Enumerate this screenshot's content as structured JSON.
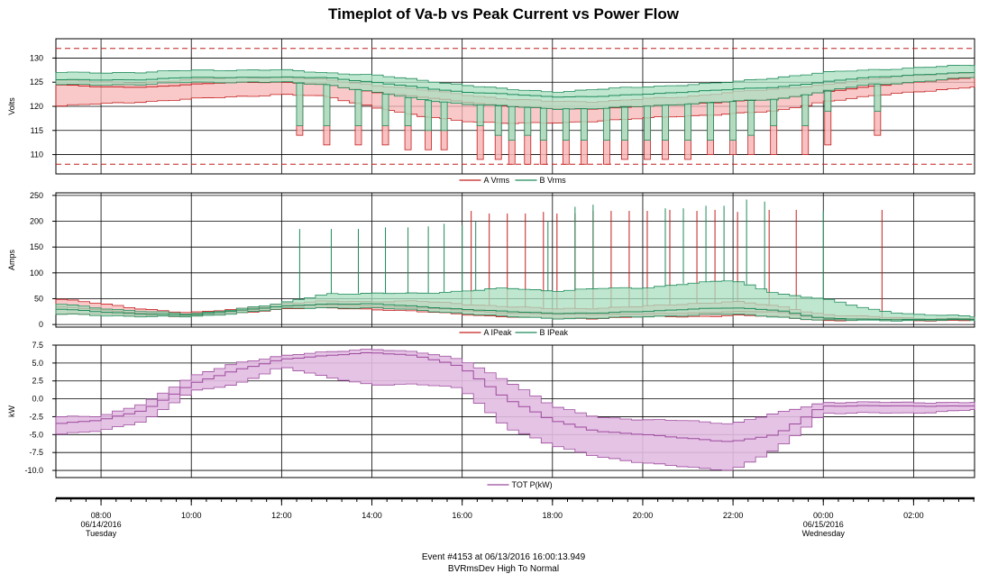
{
  "title": "Timeplot of Va-b vs Peak Current vs Power Flow",
  "footer": {
    "event": "Event #4153 at 06/13/2016 16:00:13.949",
    "description": "BVRmsDev High To Normal"
  },
  "colors": {
    "a_line": "#c41e1e",
    "a_fill": "#f7b7b7",
    "b_line": "#1e8a5a",
    "b_fill": "#a9dfc0",
    "overlap_fill": "#b4c7bc",
    "p_line": "#9c4a9c",
    "p_fill": "#e2bce2",
    "limit": "#c41e1e"
  },
  "time_axis": {
    "start_hour": 7.0,
    "end_hour": 27.35,
    "ticks": [
      {
        "hour": 8,
        "lines": [
          "08:00",
          "06/14/2016",
          "Tuesday"
        ]
      },
      {
        "hour": 10,
        "lines": [
          "10:00"
        ]
      },
      {
        "hour": 12,
        "lines": [
          "12:00"
        ]
      },
      {
        "hour": 14,
        "lines": [
          "14:00"
        ]
      },
      {
        "hour": 16,
        "lines": [
          "16:00"
        ]
      },
      {
        "hour": 18,
        "lines": [
          "18:00"
        ]
      },
      {
        "hour": 20,
        "lines": [
          "20:00"
        ]
      },
      {
        "hour": 22,
        "lines": [
          "22:00"
        ]
      },
      {
        "hour": 24,
        "lines": [
          "00:00",
          "06/15/2016",
          "Wednesday"
        ]
      },
      {
        "hour": 26,
        "lines": [
          "02:00"
        ]
      }
    ]
  },
  "chart_data": [
    {
      "type": "area",
      "ylabel": "Volts",
      "ylim": [
        106,
        134
      ],
      "yticks": [
        110,
        115,
        120,
        125,
        130
      ],
      "limits": [
        132,
        108
      ],
      "legend": [
        "A Vrms",
        "B Vrms"
      ],
      "series": [
        {
          "name": "A Vrms",
          "x": [
            7,
            8,
            9,
            10,
            11,
            12,
            13,
            14,
            15,
            16,
            17,
            18,
            19,
            20,
            21,
            22,
            23,
            24,
            25,
            26,
            27.35
          ],
          "avg": [
            124.5,
            124,
            124,
            124.5,
            125,
            125,
            124.5,
            123,
            122,
            121,
            120,
            119.5,
            119.5,
            120,
            120.5,
            121,
            121.5,
            123,
            124,
            125,
            126
          ],
          "min": [
            120,
            120.5,
            121,
            121.5,
            122,
            122.5,
            122,
            120,
            118,
            117,
            116.5,
            116.5,
            117,
            117.5,
            118,
            118.5,
            119,
            121,
            122,
            123,
            124
          ],
          "max": [
            125.5,
            125,
            125,
            125.5,
            126,
            126,
            125.5,
            124.5,
            123.5,
            122.5,
            121.5,
            121,
            121,
            121.5,
            122,
            123,
            123.5,
            124.5,
            125.5,
            126.5,
            127
          ],
          "dips": [
            {
              "x": 12.4,
              "min": 114
            },
            {
              "x": 13.0,
              "min": 112
            },
            {
              "x": 13.7,
              "min": 112
            },
            {
              "x": 14.3,
              "min": 112
            },
            {
              "x": 14.8,
              "min": 111
            },
            {
              "x": 15.25,
              "min": 111
            },
            {
              "x": 15.6,
              "min": 111
            },
            {
              "x": 16.4,
              "min": 109
            },
            {
              "x": 16.8,
              "min": 109
            },
            {
              "x": 17.1,
              "min": 108
            },
            {
              "x": 17.45,
              "min": 108
            },
            {
              "x": 17.8,
              "min": 108
            },
            {
              "x": 18.3,
              "min": 108
            },
            {
              "x": 18.7,
              "min": 108
            },
            {
              "x": 19.2,
              "min": 108
            },
            {
              "x": 19.6,
              "min": 109
            },
            {
              "x": 20.1,
              "min": 109
            },
            {
              "x": 20.5,
              "min": 109
            },
            {
              "x": 21.0,
              "min": 109
            },
            {
              "x": 21.5,
              "min": 110
            },
            {
              "x": 22.0,
              "min": 110
            },
            {
              "x": 22.4,
              "min": 110
            },
            {
              "x": 22.9,
              "min": 110
            },
            {
              "x": 23.6,
              "min": 110
            },
            {
              "x": 24.1,
              "min": 112
            },
            {
              "x": 25.2,
              "min": 114
            }
          ]
        },
        {
          "name": "B Vrms",
          "x": [
            7,
            8,
            9,
            10,
            11,
            12,
            13,
            14,
            15,
            16,
            17,
            18,
            19,
            20,
            21,
            22,
            23,
            24,
            25,
            26,
            27.35
          ],
          "avg": [
            125.5,
            125.5,
            125.5,
            126,
            126,
            126,
            126,
            125,
            124,
            123,
            122.5,
            122,
            122,
            122.5,
            123,
            123.5,
            124,
            125,
            126,
            126.5,
            127
          ],
          "min": [
            124.5,
            124.5,
            124.5,
            125,
            125,
            125,
            124.5,
            123,
            121.5,
            120.5,
            120,
            119.5,
            119.5,
            120,
            120.5,
            121,
            121.5,
            123,
            124.5,
            125,
            126
          ],
          "max": [
            127,
            127,
            127,
            127.5,
            127.5,
            127.5,
            127,
            126.5,
            125.5,
            124.5,
            123.5,
            123,
            123.5,
            124,
            124.5,
            125,
            126,
            127,
            127.5,
            128,
            128.5
          ],
          "dips": [
            {
              "x": 12.4,
              "min": 116
            },
            {
              "x": 13.0,
              "min": 116
            },
            {
              "x": 13.7,
              "min": 116
            },
            {
              "x": 14.3,
              "min": 116
            },
            {
              "x": 14.8,
              "min": 116
            },
            {
              "x": 15.25,
              "min": 115
            },
            {
              "x": 15.6,
              "min": 115
            },
            {
              "x": 16.4,
              "min": 116
            },
            {
              "x": 16.8,
              "min": 114
            },
            {
              "x": 17.1,
              "min": 113
            },
            {
              "x": 17.45,
              "min": 114
            },
            {
              "x": 17.8,
              "min": 113
            },
            {
              "x": 18.3,
              "min": 113
            },
            {
              "x": 18.7,
              "min": 113
            },
            {
              "x": 19.2,
              "min": 113
            },
            {
              "x": 19.6,
              "min": 113
            },
            {
              "x": 20.1,
              "min": 113
            },
            {
              "x": 20.5,
              "min": 113
            },
            {
              "x": 21.0,
              "min": 113
            },
            {
              "x": 21.5,
              "min": 113
            },
            {
              "x": 22.0,
              "min": 113
            },
            {
              "x": 22.4,
              "min": 114
            },
            {
              "x": 22.9,
              "min": 116
            },
            {
              "x": 23.6,
              "min": 116
            },
            {
              "x": 24.1,
              "min": 119
            },
            {
              "x": 25.2,
              "min": 119
            }
          ]
        }
      ]
    },
    {
      "type": "area",
      "ylabel": "Amps",
      "ylim": [
        -5,
        255
      ],
      "yticks": [
        0,
        50,
        100,
        150,
        200,
        250
      ],
      "legend": [
        "A IPeak",
        "B IPeak"
      ],
      "series": [
        {
          "name": "A IPeak",
          "x": [
            7,
            8,
            9,
            10,
            11,
            12,
            13,
            14,
            15,
            16,
            17,
            18,
            19,
            20,
            21,
            22,
            23,
            24,
            25,
            26,
            27.35
          ],
          "avg": [
            35,
            28,
            22,
            18,
            26,
            35,
            38,
            36,
            32,
            28,
            22,
            20,
            20,
            20,
            22,
            25,
            24,
            12,
            10,
            10,
            10
          ],
          "min": [
            20,
            20,
            18,
            15,
            22,
            30,
            32,
            30,
            25,
            20,
            15,
            12,
            12,
            15,
            15,
            18,
            15,
            8,
            8,
            8,
            8
          ],
          "max": [
            50,
            40,
            30,
            22,
            30,
            40,
            45,
            45,
            45,
            40,
            35,
            30,
            32,
            35,
            40,
            45,
            35,
            20,
            15,
            12,
            12
          ],
          "spikes": [
            {
              "x": 16.2,
              "max": 220
            },
            {
              "x": 16.6,
              "max": 215
            },
            {
              "x": 17.0,
              "max": 215
            },
            {
              "x": 17.4,
              "max": 215
            },
            {
              "x": 17.8,
              "max": 218
            },
            {
              "x": 18.1,
              "max": 215
            },
            {
              "x": 18.5,
              "max": 215
            },
            {
              "x": 18.9,
              "max": 220
            },
            {
              "x": 19.3,
              "max": 220
            },
            {
              "x": 19.7,
              "max": 220
            },
            {
              "x": 20.1,
              "max": 220
            },
            {
              "x": 20.6,
              "max": 222
            },
            {
              "x": 21.2,
              "max": 220
            },
            {
              "x": 21.6,
              "max": 222
            },
            {
              "x": 22.1,
              "max": 218
            },
            {
              "x": 22.8,
              "max": 222
            },
            {
              "x": 23.4,
              "max": 222
            },
            {
              "x": 25.3,
              "max": 222
            }
          ]
        },
        {
          "name": "B IPeak",
          "x": [
            7,
            8,
            9,
            10,
            11,
            12,
            13,
            14,
            15,
            16,
            17,
            18,
            19,
            20,
            21,
            22,
            23,
            24,
            25,
            26,
            27.35
          ],
          "avg": [
            30,
            25,
            20,
            18,
            27,
            35,
            40,
            40,
            35,
            30,
            25,
            22,
            22,
            25,
            30,
            32,
            28,
            12,
            10,
            10,
            10
          ],
          "min": [
            20,
            18,
            15,
            15,
            22,
            30,
            33,
            32,
            28,
            22,
            15,
            12,
            12,
            15,
            18,
            20,
            15,
            8,
            8,
            8,
            8
          ],
          "max": [
            40,
            32,
            25,
            20,
            30,
            40,
            60,
            60,
            60,
            65,
            70,
            65,
            70,
            70,
            80,
            85,
            60,
            50,
            30,
            20,
            15
          ],
          "spikes": [
            {
              "x": 12.4,
              "max": 185
            },
            {
              "x": 13.1,
              "max": 185
            },
            {
              "x": 13.7,
              "max": 185
            },
            {
              "x": 14.3,
              "max": 188
            },
            {
              "x": 14.8,
              "max": 188
            },
            {
              "x": 15.25,
              "max": 190
            },
            {
              "x": 15.6,
              "max": 195
            },
            {
              "x": 16.0,
              "max": 192
            },
            {
              "x": 16.3,
              "max": 200
            },
            {
              "x": 17.9,
              "max": 200
            },
            {
              "x": 18.5,
              "max": 228
            },
            {
              "x": 18.9,
              "max": 232
            },
            {
              "x": 20.5,
              "max": 225
            },
            {
              "x": 20.9,
              "max": 225
            },
            {
              "x": 21.4,
              "max": 230
            },
            {
              "x": 21.8,
              "max": 230
            },
            {
              "x": 22.3,
              "max": 242
            },
            {
              "x": 22.7,
              "max": 238
            },
            {
              "x": 24.0,
              "max": 220
            }
          ]
        }
      ]
    },
    {
      "type": "area",
      "ylabel": "kW",
      "ylim": [
        -11,
        7.5
      ],
      "yticks": [
        -10.0,
        -7.5,
        -5.0,
        -2.5,
        0.0,
        2.5,
        5.0,
        7.5
      ],
      "legend": [
        "TOT P(kW)"
      ],
      "series": [
        {
          "name": "TOT P(kW)",
          "x": [
            7,
            8,
            9,
            10,
            11,
            12,
            13,
            14,
            15,
            16,
            17,
            18,
            19,
            20,
            21,
            22,
            23,
            24,
            25,
            26,
            27.35
          ],
          "avg": [
            -3.5,
            -3,
            -1.5,
            2,
            4,
            5.5,
            6,
            6.5,
            6,
            4.5,
            0,
            -3,
            -4.5,
            -5,
            -5.5,
            -6,
            -5,
            -1,
            -1,
            -1,
            -1
          ],
          "min": [
            -5,
            -4.5,
            -3,
            1,
            2,
            4.5,
            3,
            2,
            2,
            1.5,
            -4,
            -6.5,
            -8,
            -9,
            -9.5,
            -10,
            -7,
            -2,
            -2,
            -2,
            -1.5
          ],
          "max": [
            -2.5,
            -2.5,
            -0.5,
            3,
            5,
            6,
            6.5,
            7,
            6.5,
            5.5,
            2.5,
            -1,
            -2.5,
            -3,
            -3,
            -3.5,
            -2,
            -0.5,
            -0.5,
            -0.5,
            -0.5
          ]
        }
      ]
    }
  ]
}
